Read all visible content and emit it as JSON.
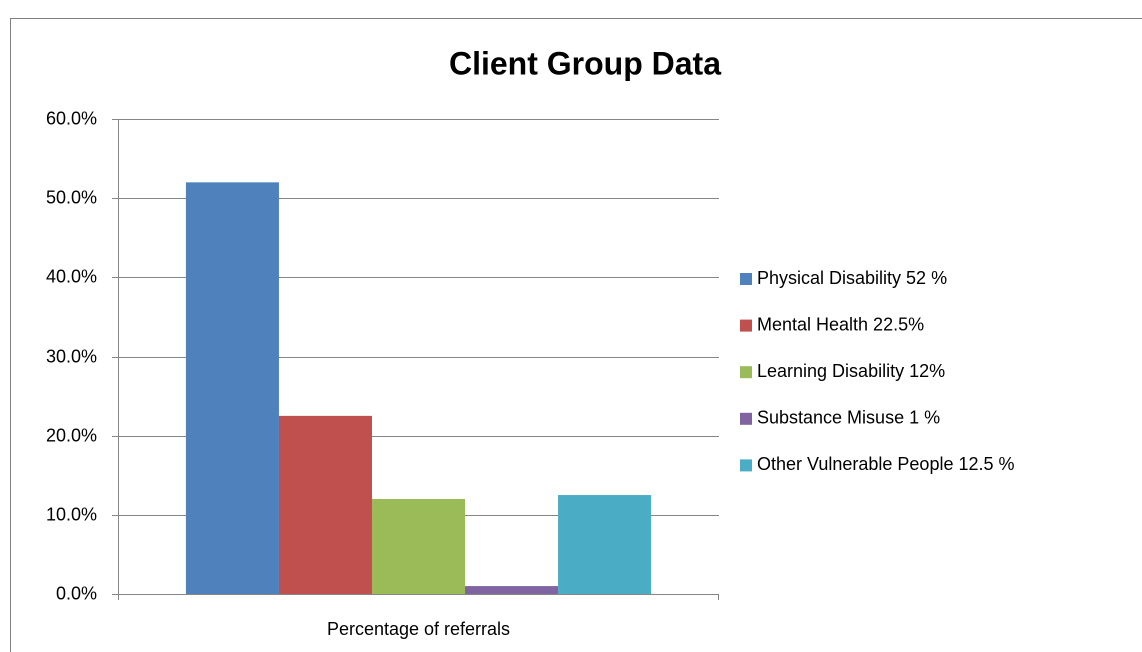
{
  "chart_data": {
    "type": "bar",
    "title": "Client Group Data",
    "categories": [
      "Percentage of referrals"
    ],
    "series": [
      {
        "name": "Physical Disability 52 %",
        "color": "#4f81bd",
        "values": [
          52
        ]
      },
      {
        "name": "Mental Health 22.5%",
        "color": "#c0504d",
        "values": [
          22.5
        ]
      },
      {
        "name": "Learning Disability 12%",
        "color": "#9bbb59",
        "values": [
          12
        ]
      },
      {
        "name": "Substance Misuse 1 %",
        "color": "#8064a2",
        "values": [
          1
        ]
      },
      {
        "name": "Other Vulnerable People 12.5 %",
        "color": "#4bacc6",
        "values": [
          12.5
        ]
      }
    ],
    "ylim": [
      0,
      60
    ],
    "yticks": [
      {
        "value": 0,
        "label": "0.0%"
      },
      {
        "value": 10,
        "label": "10.0%"
      },
      {
        "value": 20,
        "label": "20.0%"
      },
      {
        "value": 30,
        "label": "30.0%"
      },
      {
        "value": 40,
        "label": "40.0%"
      },
      {
        "value": 50,
        "label": "50.0%"
      },
      {
        "value": 60,
        "label": "60.0%"
      }
    ],
    "grid": true,
    "legend": "right"
  }
}
